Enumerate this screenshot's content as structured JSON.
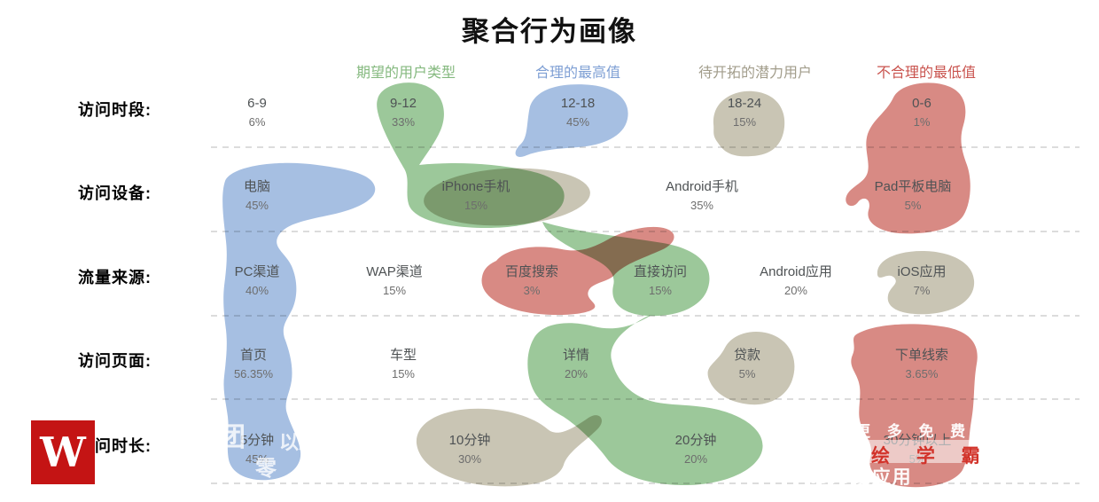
{
  "title": "聚合行为画像",
  "legend": [
    {
      "label": "期望的用户类型",
      "color": "#85b97f"
    },
    {
      "label": "合理的最高值",
      "color": "#7e9fd4"
    },
    {
      "label": "待开拓的潜力用户",
      "color": "#a29d8b"
    },
    {
      "label": "不合理的最低值",
      "color": "#c9534e"
    }
  ],
  "blob_colors": {
    "expected": "#9cc89a",
    "max": "#a6bfe2",
    "potential": "#c9c5b4",
    "min": "#d88a84"
  },
  "rows": [
    {
      "label": "访问时段:",
      "items": [
        {
          "name": "6-9",
          "value": "6%",
          "category": "none"
        },
        {
          "name": "9-12",
          "value": "33%",
          "category": "expected"
        },
        {
          "name": "12-18",
          "value": "45%",
          "category": "max"
        },
        {
          "name": "18-24",
          "value": "15%",
          "category": "potential"
        },
        {
          "name": "0-6",
          "value": "1%",
          "category": "min"
        }
      ]
    },
    {
      "label": "访问设备:",
      "items": [
        {
          "name": "电脑",
          "value": "45%",
          "category": "max"
        },
        {
          "name": "iPhone手机",
          "value": "15%",
          "category": "expected"
        },
        {
          "name": "Android手机",
          "value": "35%",
          "category": "none"
        },
        {
          "name": "Pad平板电脑",
          "value": "5%",
          "category": "min"
        }
      ]
    },
    {
      "label": "流量来源:",
      "items": [
        {
          "name": "PC渠道",
          "value": "40%",
          "category": "max"
        },
        {
          "name": "WAP渠道",
          "value": "15%",
          "category": "none"
        },
        {
          "name": "百度搜索",
          "value": "3%",
          "category": "min"
        },
        {
          "name": "直接访问",
          "value": "15%",
          "category": "expected"
        },
        {
          "name": "Android应用",
          "value": "20%",
          "category": "none"
        },
        {
          "name": "iOS应用",
          "value": "7%",
          "category": "potential"
        }
      ]
    },
    {
      "label": "访问页面:",
      "items": [
        {
          "name": "首页",
          "value": "56.35%",
          "category": "max"
        },
        {
          "name": "车型",
          "value": "15%",
          "category": "none"
        },
        {
          "name": "详情",
          "value": "20%",
          "category": "expected"
        },
        {
          "name": "贷款",
          "value": "5%",
          "category": "potential"
        },
        {
          "name": "下单线索",
          "value": "3.65%",
          "category": "min"
        }
      ]
    },
    {
      "label": "访问时长:",
      "items": [
        {
          "name": "5分钟",
          "value": "45%",
          "category": "max"
        },
        {
          "name": "10分钟",
          "value": "30%",
          "category": "potential"
        },
        {
          "name": "20分钟",
          "value": "20%",
          "category": "expected"
        },
        {
          "name": "30分钟以上",
          "value": "5%",
          "category": "min"
        }
      ]
    }
  ],
  "watermarks": {
    "logo_letter": "W",
    "left_faint": [
      "团",
      "以人",
      "零"
    ],
    "right_line1": "更 多 免 费",
    "right_line2": "绘 学 霸",
    "right_line3": "tore或应用"
  },
  "chart_data": {
    "type": "table",
    "title": "聚合行为画像",
    "legend": [
      "期望的用户类型",
      "合理的最高值",
      "待开拓的潜力用户",
      "不合理的最低值"
    ],
    "legend_colors": [
      "#9cc89a",
      "#a6bfe2",
      "#c9c5b4",
      "#d88a84"
    ],
    "rows": [
      {
        "dimension": "访问时段",
        "categories": [
          "6-9",
          "9-12",
          "12-18",
          "18-24",
          "0-6"
        ],
        "values_pct": [
          6,
          33,
          45,
          15,
          1
        ],
        "highlight": [
          null,
          "期望的用户类型",
          "合理的最高值",
          "待开拓的潜力用户",
          "不合理的最低值"
        ]
      },
      {
        "dimension": "访问设备",
        "categories": [
          "电脑",
          "iPhone手机",
          "Android手机",
          "Pad平板电脑"
        ],
        "values_pct": [
          45,
          15,
          35,
          5
        ],
        "highlight": [
          "合理的最高值",
          "期望的用户类型",
          null,
          "不合理的最低值"
        ]
      },
      {
        "dimension": "流量来源",
        "categories": [
          "PC渠道",
          "WAP渠道",
          "百度搜索",
          "直接访问",
          "Android应用",
          "iOS应用"
        ],
        "values_pct": [
          40,
          15,
          3,
          15,
          20,
          7
        ],
        "highlight": [
          "合理的最高值",
          null,
          "不合理的最低值",
          "期望的用户类型",
          null,
          "待开拓的潜力用户"
        ]
      },
      {
        "dimension": "访问页面",
        "categories": [
          "首页",
          "车型",
          "详情",
          "贷款",
          "下单线索"
        ],
        "values_pct": [
          56.35,
          15,
          20,
          5,
          3.65
        ],
        "highlight": [
          "合理的最高值",
          null,
          "期望的用户类型",
          "待开拓的潜力用户",
          "不合理的最低值"
        ]
      },
      {
        "dimension": "访问时长",
        "categories": [
          "5分钟",
          "10分钟",
          "20分钟",
          "30分钟以上"
        ],
        "values_pct": [
          45,
          30,
          20,
          5
        ],
        "highlight": [
          "合理的最高值",
          "待开拓的潜力用户",
          "期望的用户类型",
          "不合理的最低值"
        ]
      }
    ]
  }
}
